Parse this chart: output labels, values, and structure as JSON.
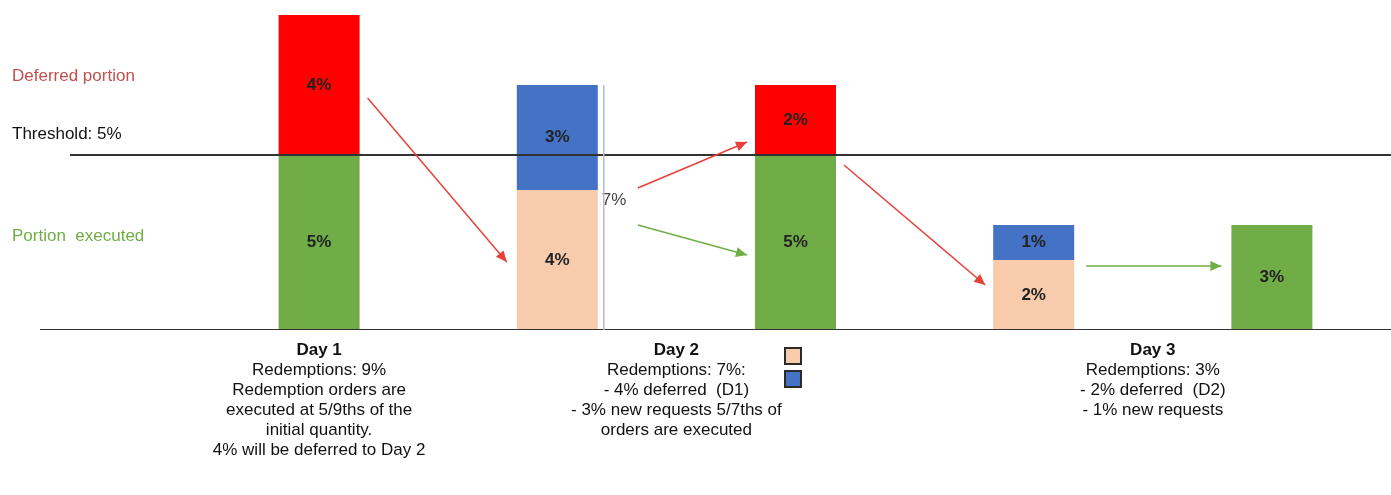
{
  "chart_data": {
    "type": "bar",
    "stacked": true,
    "categories": [
      null,
      null,
      null,
      null,
      null
    ],
    "series": [
      {
        "color": "#70ad47",
        "values": [
          5,
          null,
          5,
          null,
          3
        ],
        "value_labels": [
          "5%",
          null,
          "5%",
          null,
          "3%"
        ]
      },
      {
        "color": "#f8cbad",
        "values": [
          null,
          4,
          null,
          2,
          null
        ],
        "value_labels": [
          null,
          "4%",
          null,
          "2%",
          null
        ]
      },
      {
        "color": "#4472c4",
        "values": [
          null,
          3,
          null,
          1,
          null
        ],
        "value_labels": [
          null,
          "3%",
          null,
          "1%",
          null
        ]
      },
      {
        "color": "#ff0000",
        "values": [
          4,
          null,
          2,
          null,
          null
        ],
        "value_labels": [
          "4%",
          null,
          "2%",
          null,
          null
        ]
      }
    ],
    "ref_lines": [
      {
        "axis": "y",
        "value": 5,
        "label": "Threshold: 5%",
        "color": "#333333"
      }
    ],
    "annotations": [
      "Deferred portion",
      "Portion  executed",
      "7%",
      "Day 1\nRedemptions: 9%\nRedemption orders are\nexecuted at 5/9ths of the\ninitial quantity.\n4% will be deferred to Day 2",
      "Day 2\nRedemptions: 7%:\n- 4% deferred  (D1)\n- 3% new requests 5/7ths of\norders are executed",
      "Day 3\nRedemptions: 3%\n- 2% deferred  (D2)\n- 1% new requests"
    ],
    "grid": false,
    "legend": false,
    "tick_labels": false
  }
}
